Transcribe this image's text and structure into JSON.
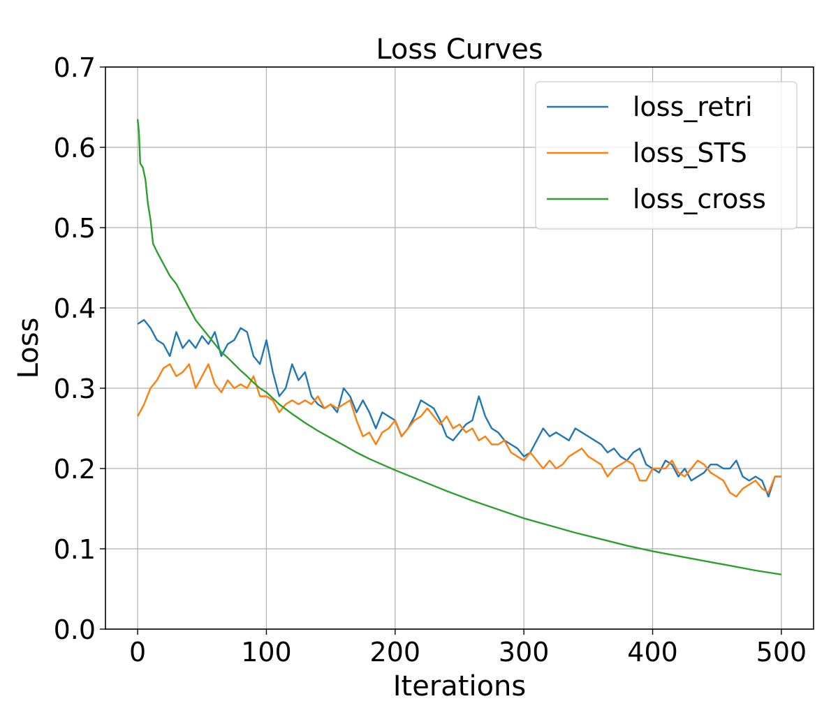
{
  "chart_data": {
    "type": "line",
    "title": "Loss Curves",
    "xlabel": "Iterations",
    "ylabel": "Loss",
    "xlim": [
      -25,
      525
    ],
    "ylim": [
      0.0,
      0.7
    ],
    "xticks": [
      0,
      100,
      200,
      300,
      400,
      500
    ],
    "xtick_labels": [
      "0",
      "100",
      "200",
      "300",
      "400",
      "500"
    ],
    "yticks": [
      0.0,
      0.1,
      0.2,
      0.3,
      0.4,
      0.5,
      0.6,
      0.7
    ],
    "ytick_labels": [
      "0.0",
      "0.1",
      "0.2",
      "0.3",
      "0.4",
      "0.5",
      "0.6",
      "0.7"
    ],
    "grid": true,
    "legend_position": "top-right",
    "series": [
      {
        "name": "loss_retri",
        "color": "#1f77b4",
        "x": [
          0,
          5,
          10,
          15,
          20,
          25,
          30,
          35,
          40,
          45,
          50,
          55,
          60,
          65,
          70,
          75,
          80,
          85,
          90,
          95,
          100,
          105,
          110,
          115,
          120,
          125,
          130,
          135,
          140,
          145,
          150,
          155,
          160,
          165,
          170,
          175,
          180,
          185,
          190,
          195,
          200,
          205,
          210,
          215,
          220,
          225,
          230,
          235,
          240,
          245,
          250,
          255,
          260,
          265,
          270,
          275,
          280,
          285,
          290,
          295,
          300,
          305,
          310,
          315,
          320,
          325,
          330,
          335,
          340,
          345,
          350,
          355,
          360,
          365,
          370,
          375,
          380,
          385,
          390,
          395,
          400,
          405,
          410,
          415,
          420,
          425,
          430,
          435,
          440,
          445,
          450,
          455,
          460,
          465,
          470,
          475,
          480,
          485,
          490,
          495,
          500
        ],
        "values": [
          0.38,
          0.385,
          0.375,
          0.36,
          0.355,
          0.34,
          0.37,
          0.35,
          0.36,
          0.35,
          0.365,
          0.355,
          0.37,
          0.34,
          0.355,
          0.36,
          0.375,
          0.37,
          0.34,
          0.33,
          0.36,
          0.32,
          0.29,
          0.3,
          0.33,
          0.31,
          0.32,
          0.29,
          0.28,
          0.275,
          0.28,
          0.27,
          0.3,
          0.29,
          0.27,
          0.285,
          0.27,
          0.25,
          0.27,
          0.265,
          0.26,
          0.24,
          0.25,
          0.265,
          0.285,
          0.28,
          0.275,
          0.26,
          0.24,
          0.235,
          0.245,
          0.255,
          0.26,
          0.29,
          0.265,
          0.25,
          0.245,
          0.235,
          0.23,
          0.225,
          0.215,
          0.22,
          0.235,
          0.25,
          0.24,
          0.245,
          0.24,
          0.235,
          0.25,
          0.245,
          0.24,
          0.235,
          0.23,
          0.22,
          0.225,
          0.215,
          0.21,
          0.22,
          0.225,
          0.205,
          0.2,
          0.195,
          0.21,
          0.205,
          0.19,
          0.2,
          0.185,
          0.19,
          0.195,
          0.205,
          0.205,
          0.2,
          0.2,
          0.21,
          0.19,
          0.185,
          0.19,
          0.185,
          0.165,
          0.19,
          0.19
        ]
      },
      {
        "name": "loss_STS",
        "color": "#ff7f0e",
        "x": [
          0,
          5,
          10,
          15,
          20,
          25,
          30,
          35,
          40,
          45,
          50,
          55,
          60,
          65,
          70,
          75,
          80,
          85,
          90,
          95,
          100,
          105,
          110,
          115,
          120,
          125,
          130,
          135,
          140,
          145,
          150,
          155,
          160,
          165,
          170,
          175,
          180,
          185,
          190,
          195,
          200,
          205,
          210,
          215,
          220,
          225,
          230,
          235,
          240,
          245,
          250,
          255,
          260,
          265,
          270,
          275,
          280,
          285,
          290,
          295,
          300,
          305,
          310,
          315,
          320,
          325,
          330,
          335,
          340,
          345,
          350,
          355,
          360,
          365,
          370,
          375,
          380,
          385,
          390,
          395,
          400,
          405,
          410,
          415,
          420,
          425,
          430,
          435,
          440,
          445,
          450,
          455,
          460,
          465,
          470,
          475,
          480,
          485,
          490,
          495,
          500
        ],
        "values": [
          0.265,
          0.28,
          0.3,
          0.31,
          0.325,
          0.33,
          0.315,
          0.32,
          0.33,
          0.3,
          0.315,
          0.33,
          0.305,
          0.295,
          0.31,
          0.3,
          0.305,
          0.3,
          0.315,
          0.29,
          0.29,
          0.285,
          0.27,
          0.28,
          0.285,
          0.28,
          0.285,
          0.28,
          0.29,
          0.275,
          0.28,
          0.275,
          0.28,
          0.285,
          0.26,
          0.24,
          0.245,
          0.23,
          0.245,
          0.25,
          0.26,
          0.24,
          0.25,
          0.26,
          0.265,
          0.275,
          0.265,
          0.255,
          0.265,
          0.25,
          0.255,
          0.245,
          0.25,
          0.235,
          0.24,
          0.23,
          0.23,
          0.235,
          0.22,
          0.215,
          0.21,
          0.22,
          0.21,
          0.2,
          0.21,
          0.2,
          0.205,
          0.215,
          0.22,
          0.225,
          0.215,
          0.21,
          0.205,
          0.19,
          0.2,
          0.205,
          0.21,
          0.205,
          0.185,
          0.185,
          0.2,
          0.2,
          0.2,
          0.21,
          0.195,
          0.19,
          0.2,
          0.21,
          0.205,
          0.195,
          0.19,
          0.185,
          0.17,
          0.165,
          0.175,
          0.18,
          0.185,
          0.175,
          0.17,
          0.19,
          0.19
        ]
      },
      {
        "name": "loss_cross",
        "color": "#2ca02c",
        "x": [
          0,
          1,
          2,
          4,
          6,
          8,
          10,
          12,
          15,
          20,
          25,
          30,
          35,
          40,
          45,
          50,
          55,
          60,
          65,
          70,
          75,
          80,
          85,
          90,
          95,
          100,
          110,
          120,
          130,
          140,
          150,
          160,
          170,
          180,
          190,
          200,
          220,
          240,
          260,
          280,
          300,
          320,
          340,
          360,
          380,
          400,
          420,
          440,
          460,
          480,
          500
        ],
        "values": [
          0.635,
          0.62,
          0.58,
          0.575,
          0.56,
          0.53,
          0.51,
          0.48,
          0.47,
          0.455,
          0.44,
          0.43,
          0.415,
          0.4,
          0.385,
          0.375,
          0.365,
          0.355,
          0.345,
          0.338,
          0.33,
          0.322,
          0.315,
          0.307,
          0.3,
          0.295,
          0.28,
          0.268,
          0.257,
          0.247,
          0.238,
          0.229,
          0.22,
          0.212,
          0.205,
          0.198,
          0.185,
          0.172,
          0.16,
          0.149,
          0.138,
          0.129,
          0.12,
          0.112,
          0.104,
          0.097,
          0.091,
          0.085,
          0.079,
          0.073,
          0.068
        ]
      }
    ]
  }
}
